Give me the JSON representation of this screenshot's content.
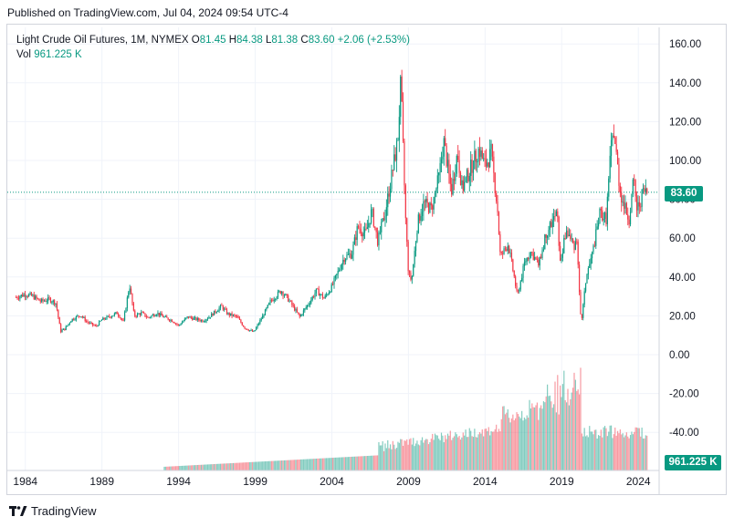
{
  "header": {
    "published": "Published on TradingView.com, Jul 04, 2024 09:54 UTC-4"
  },
  "legend": {
    "symbol": "Light Crude Oil Futures, 1M, NYMEX",
    "o_key": "O",
    "o": "81.45",
    "h_key": "H",
    "h": "84.38",
    "l_key": "L",
    "l": "81.38",
    "c_key": "C",
    "c": "83.60",
    "change": "+2.06 (+2.53%)",
    "vol_key": "Vol",
    "vol": "961.225 K"
  },
  "tags": {
    "price": "83.60",
    "volume": "961.225 K"
  },
  "footer": {
    "brand": "TradingView"
  },
  "colors": {
    "up": "#089981",
    "down": "#f23645",
    "grid": "#f0f3fa",
    "text": "#131722"
  },
  "chart_data": {
    "type": "candlestick",
    "title": "Light Crude Oil Futures, 1M, NYMEX",
    "yticks": [
      "160.00",
      "140.00",
      "120.00",
      "100.00",
      "80.00",
      "60.00",
      "40.00",
      "20.00",
      "0.00",
      "-20.00",
      "-40.00"
    ],
    "ylim": [
      -60,
      170
    ],
    "xticks": [
      "1984",
      "1989",
      "1994",
      "1999",
      "2004",
      "2009",
      "2014",
      "2019",
      "2024"
    ],
    "xlim": [
      1983.3,
      2025.0
    ],
    "last_price": 83.6,
    "price_series": [
      [
        1983.4,
        29.5
      ],
      [
        1984.0,
        31.2
      ],
      [
        1984.5,
        30.0
      ],
      [
        1985.0,
        27.5
      ],
      [
        1985.6,
        28.5
      ],
      [
        1986.0,
        26.5
      ],
      [
        1986.3,
        12.0
      ],
      [
        1986.6,
        13.5
      ],
      [
        1987.0,
        18.0
      ],
      [
        1987.6,
        20.5
      ],
      [
        1988.0,
        17.0
      ],
      [
        1988.6,
        14.5
      ],
      [
        1989.0,
        18.0
      ],
      [
        1989.6,
        20.0
      ],
      [
        1990.0,
        21.5
      ],
      [
        1990.4,
        17.0
      ],
      [
        1990.8,
        36.0
      ],
      [
        1991.1,
        20.0
      ],
      [
        1991.6,
        21.5
      ],
      [
        1992.0,
        19.0
      ],
      [
        1992.6,
        21.5
      ],
      [
        1993.0,
        19.5
      ],
      [
        1993.6,
        17.5
      ],
      [
        1994.0,
        15.0
      ],
      [
        1994.6,
        19.5
      ],
      [
        1995.0,
        18.5
      ],
      [
        1995.6,
        17.5
      ],
      [
        1996.0,
        19.5
      ],
      [
        1996.8,
        25.0
      ],
      [
        1997.2,
        21.0
      ],
      [
        1997.8,
        19.5
      ],
      [
        1998.3,
        14.0
      ],
      [
        1998.9,
        11.5
      ],
      [
        1999.5,
        20.0
      ],
      [
        2000.0,
        27.5
      ],
      [
        2000.7,
        33.0
      ],
      [
        2001.2,
        28.0
      ],
      [
        2001.9,
        19.5
      ],
      [
        2002.5,
        26.5
      ],
      [
        2003.0,
        33.0
      ],
      [
        2003.5,
        29.0
      ],
      [
        2004.0,
        35.0
      ],
      [
        2004.8,
        50.0
      ],
      [
        2005.3,
        52.0
      ],
      [
        2005.7,
        66.0
      ],
      [
        2006.2,
        62.0
      ],
      [
        2006.6,
        74.0
      ],
      [
        2007.0,
        58.0
      ],
      [
        2007.5,
        74.0
      ],
      [
        2007.9,
        92.0
      ],
      [
        2008.3,
        110.0
      ],
      [
        2008.5,
        140.0
      ],
      [
        2008.8,
        72.0
      ],
      [
        2009.0,
        42.0
      ],
      [
        2009.2,
        38.0
      ],
      [
        2009.6,
        68.0
      ],
      [
        2010.0,
        78.0
      ],
      [
        2010.5,
        75.0
      ],
      [
        2011.0,
        92.0
      ],
      [
        2011.3,
        110.0
      ],
      [
        2011.8,
        84.0
      ],
      [
        2012.2,
        104.0
      ],
      [
        2012.5,
        85.0
      ],
      [
        2013.0,
        95.0
      ],
      [
        2013.6,
        106.0
      ],
      [
        2014.0,
        97.0
      ],
      [
        2014.4,
        104.0
      ],
      [
        2014.8,
        76.0
      ],
      [
        2015.0,
        50.0
      ],
      [
        2015.5,
        57.0
      ],
      [
        2015.9,
        40.0
      ],
      [
        2016.1,
        30.0
      ],
      [
        2016.6,
        48.0
      ],
      [
        2017.0,
        53.0
      ],
      [
        2017.5,
        46.0
      ],
      [
        2018.0,
        63.0
      ],
      [
        2018.7,
        73.0
      ],
      [
        2018.9,
        47.0
      ],
      [
        2019.3,
        64.0
      ],
      [
        2019.8,
        56.0
      ],
      [
        2020.0,
        60.0
      ],
      [
        2020.2,
        22.0
      ],
      [
        2020.3,
        18.0
      ],
      [
        2020.6,
        40.0
      ],
      [
        2021.0,
        52.0
      ],
      [
        2021.5,
        73.0
      ],
      [
        2021.9,
        70.0
      ],
      [
        2022.2,
        105.0
      ],
      [
        2022.4,
        115.0
      ],
      [
        2022.8,
        85.0
      ],
      [
        2023.0,
        78.0
      ],
      [
        2023.4,
        70.0
      ],
      [
        2023.7,
        90.0
      ],
      [
        2023.9,
        75.0
      ],
      [
        2024.1,
        78.0
      ],
      [
        2024.3,
        84.0
      ],
      [
        2024.5,
        83.6
      ]
    ],
    "volume_label": "Vol",
    "volume_last": "961.225 K"
  }
}
